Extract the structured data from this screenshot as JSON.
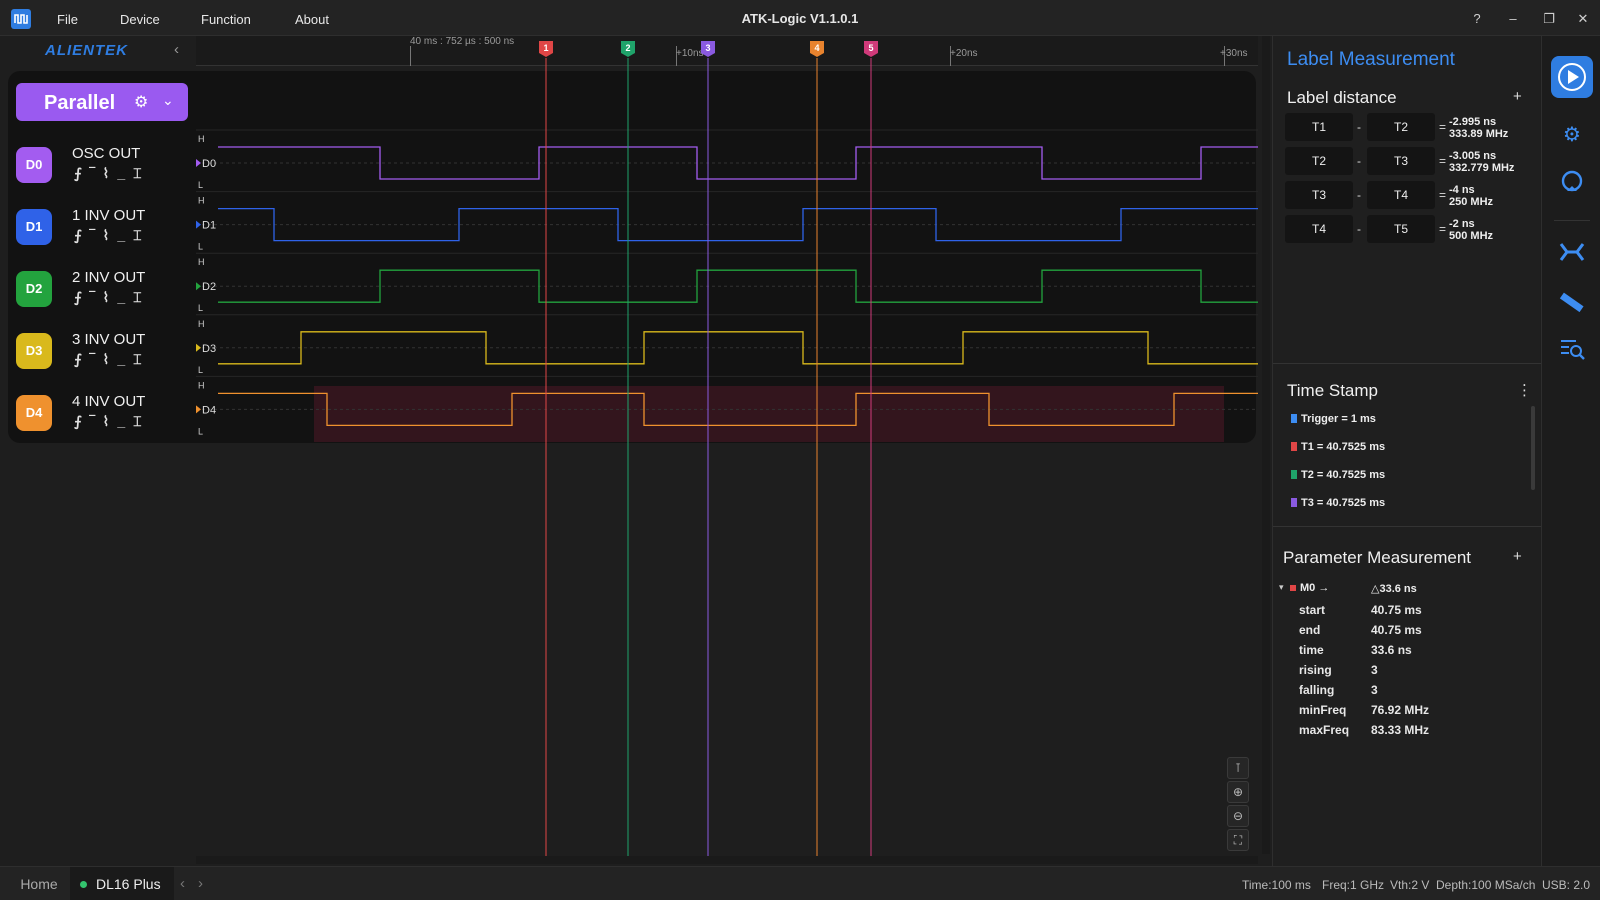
{
  "app": {
    "title": "ATK-Logic  V1.1.0.1",
    "brand": "ALIENTEK"
  },
  "menu": [
    "File",
    "Device",
    "Function",
    "About"
  ],
  "window_buttons": {
    "help": "?",
    "minimize": "–",
    "restore": "❐",
    "close": "✕"
  },
  "ruler": {
    "start_label": "40 ms : 752 µs : 500 ns",
    "ticks": [
      "+10ns",
      "+20ns",
      "+30ns"
    ]
  },
  "markers": [
    {
      "id": "1",
      "color": "#e04646"
    },
    {
      "id": "2",
      "color": "#1fa36a"
    },
    {
      "id": "3",
      "color": "#8a5ae0"
    },
    {
      "id": "4",
      "color": "#e8832e"
    },
    {
      "id": "5",
      "color": "#d03a7a"
    }
  ],
  "group": {
    "label": "Parallel",
    "color": "#9a5af0"
  },
  "channels": [
    {
      "badge": "D0",
      "name": "OSC OUT",
      "tag": "D0",
      "color": "#a35cf0"
    },
    {
      "badge": "D1",
      "name": "1 INV OUT",
      "tag": "D1",
      "color": "#2f62e8"
    },
    {
      "badge": "D2",
      "name": "2 INV OUT",
      "tag": "D2",
      "color": "#23a33e"
    },
    {
      "badge": "D3",
      "name": "3 INV OUT",
      "tag": "D3",
      "color": "#d9b91c"
    },
    {
      "badge": "D4",
      "name": "4 INV OUT",
      "tag": "D4",
      "color": "#ef912e"
    }
  ],
  "level_labels": {
    "high": "H",
    "low": "L"
  },
  "trigger_icons": "⨍‾⌇_⌶",
  "zoom_tools": [
    "⊺",
    "⊕",
    "⊖",
    "⛶"
  ],
  "label_measurement": {
    "title": "Label Measurement",
    "distance_title": "Label distance",
    "rows": [
      {
        "a": "T1",
        "b": "T2",
        "time": "-2.995 ns",
        "freq": "333.89 MHz"
      },
      {
        "a": "T2",
        "b": "T3",
        "time": "-3.005 ns",
        "freq": "332.779 MHz"
      },
      {
        "a": "T3",
        "b": "T4",
        "time": "-4 ns",
        "freq": "250 MHz"
      },
      {
        "a": "T4",
        "b": "T5",
        "time": "-2 ns",
        "freq": "500 MHz"
      }
    ]
  },
  "time_stamp": {
    "title": "Time Stamp",
    "items": [
      {
        "text": "Trigger = 1 ms",
        "color": "#3d8df2"
      },
      {
        "text": "T1 = 40.7525 ms",
        "color": "#e04646"
      },
      {
        "text": "T2 = 40.7525 ms",
        "color": "#1fa36a"
      },
      {
        "text": "T3 = 40.7525 ms",
        "color": "#8a5ae0"
      }
    ]
  },
  "parameter_measurement": {
    "title": "Parameter Measurement",
    "entry": {
      "name": "M0 →",
      "delta": "△33.6 ns"
    },
    "rows": [
      {
        "key": "start",
        "value": "40.75 ms"
      },
      {
        "key": "end",
        "value": "40.75 ms"
      },
      {
        "key": "time",
        "value": "33.6 ns"
      },
      {
        "key": "rising",
        "value": "3"
      },
      {
        "key": "falling",
        "value": "3"
      },
      {
        "key": "minFreq",
        "value": "76.92 MHz"
      },
      {
        "key": "maxFreq",
        "value": "83.33 MHz"
      }
    ]
  },
  "tabs": {
    "home": "Home",
    "device": "DL16 Plus"
  },
  "status": {
    "time": "Time:100 ms",
    "freq": "Freq:1 GHz",
    "vth": "Vth:2 V",
    "depth": "Depth:100 MSa/ch",
    "usb": "USB: 2.0"
  }
}
